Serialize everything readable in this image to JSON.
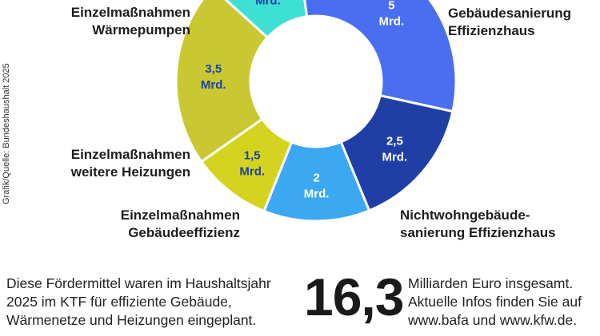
{
  "chart_data": {
    "type": "pie",
    "unit": "Mrd.",
    "categories": [
      "Gebäudesanierung\nEffizienzhaus",
      "Nichtwohngebäude-\nsanierung Effizienzhaus",
      "Einzelmaßnahmen\nGebäudeeffizienz",
      "Einzelmaßnahmen\nweitere Heizungen",
      "Einzelmaßnahmen\nWärmepumpen",
      ""
    ],
    "values": [
      5,
      2.5,
      2,
      1.5,
      3.5,
      1.8
    ],
    "value_labels": [
      "5",
      "2,5",
      "2",
      "1,5",
      "3,5",
      ""
    ],
    "colors": [
      "#4a6ef0",
      "#1f3fa6",
      "#3ca8f2",
      "#d4d420",
      "#c9c832",
      "#3ee0d4"
    ]
  },
  "source": "Grafik/Quelle: Bundeshaushalt 2025",
  "footer": {
    "left_text": "Diese Fördermittel waren im Haushaltsjahr\n2025 im KTF für effiziente Gebäude,\nWärmenetze und Heizungen eingeplant.",
    "total": "16,3",
    "right_text": "Milliarden Euro insgesamt.\nAktuelle Infos finden Sie auf\nwww.bafa und www.kfw.de."
  }
}
